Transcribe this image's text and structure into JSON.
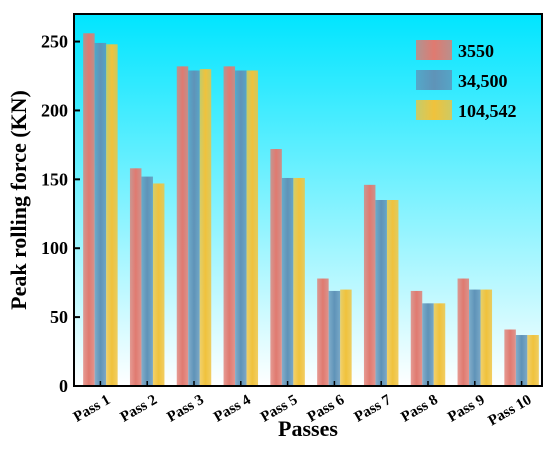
{
  "chart_data": {
    "type": "bar",
    "title": "",
    "xlabel": "Passes",
    "ylabel": "Peak rolling force (KN)",
    "categories": [
      "Pass 1",
      "Pass 2",
      "Pass 3",
      "Pass 4",
      "Pass 5",
      "Pass 6",
      "Pass 7",
      "Pass 8",
      "Pass 9",
      "Pass 10"
    ],
    "series": [
      {
        "name": "3550",
        "color": "#e07a70",
        "values": [
          256,
          158,
          232,
          232,
          172,
          78,
          146,
          69,
          78,
          41
        ]
      },
      {
        "name": "34,500",
        "color": "#5f93b8",
        "values": [
          249,
          152,
          229,
          229,
          151,
          69,
          135,
          60,
          70,
          37
        ]
      },
      {
        "name": "104,542",
        "color": "#f0c23c",
        "values": [
          248,
          147,
          230,
          229,
          151,
          70,
          135,
          60,
          70,
          37
        ]
      }
    ],
    "ylim": [
      0,
      270
    ],
    "yticks": [
      0,
      50,
      100,
      150,
      200,
      250
    ],
    "legend_position": "top-right",
    "grid": false,
    "background_gradient": [
      "#00e5ff",
      "#ffffff"
    ]
  }
}
